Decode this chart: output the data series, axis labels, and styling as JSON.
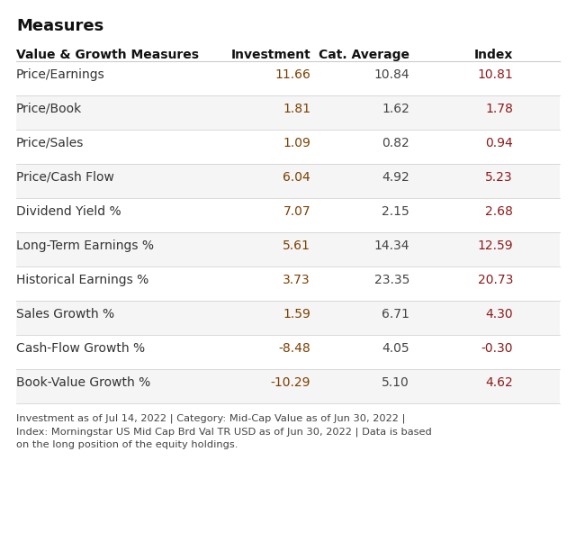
{
  "title": "Measures",
  "header": [
    "Value & Growth Measures",
    "Investment",
    "Cat. Average",
    "Index"
  ],
  "rows": [
    [
      "Price/Earnings",
      "11.66",
      "10.84",
      "10.81"
    ],
    [
      "Price/Book",
      "1.81",
      "1.62",
      "1.78"
    ],
    [
      "Price/Sales",
      "1.09",
      "0.82",
      "0.94"
    ],
    [
      "Price/Cash Flow",
      "6.04",
      "4.92",
      "5.23"
    ],
    [
      "Dividend Yield %",
      "7.07",
      "2.15",
      "2.68"
    ],
    [
      "Long-Term Earnings %",
      "5.61",
      "14.34",
      "12.59"
    ],
    [
      "Historical Earnings %",
      "3.73",
      "23.35",
      "20.73"
    ],
    [
      "Sales Growth %",
      "1.59",
      "6.71",
      "4.30"
    ],
    [
      "Cash-Flow Growth %",
      "-8.48",
      "4.05",
      "-0.30"
    ],
    [
      "Book-Value Growth %",
      "-10.29",
      "5.10",
      "4.62"
    ]
  ],
  "footer": "Investment as of Jul 14, 2022 | Category: Mid-Cap Value as of Jun 30, 2022 |\nIndex: Morningstar US Mid Cap Brd Val TR USD as of Jun 30, 2022 | Data is based\non the long position of the equity holdings.",
  "highlight_rows": [
    1,
    3
  ],
  "col_colors": {
    "Investment": "#7B3F00",
    "Cat. Average": "#555555",
    "Index": "#8B1A1A"
  },
  "bg_color": "#FFFFFF",
  "header_row_color": "#FFFFFF",
  "odd_row_color": "#FFFFFF",
  "even_row_color": "#F5F5F5",
  "divider_color": "#CCCCCC",
  "label_color": "#333333",
  "investment_color": "#7B3F00",
  "cat_avg_color": "#444444",
  "index_color": "#8B1A1A"
}
